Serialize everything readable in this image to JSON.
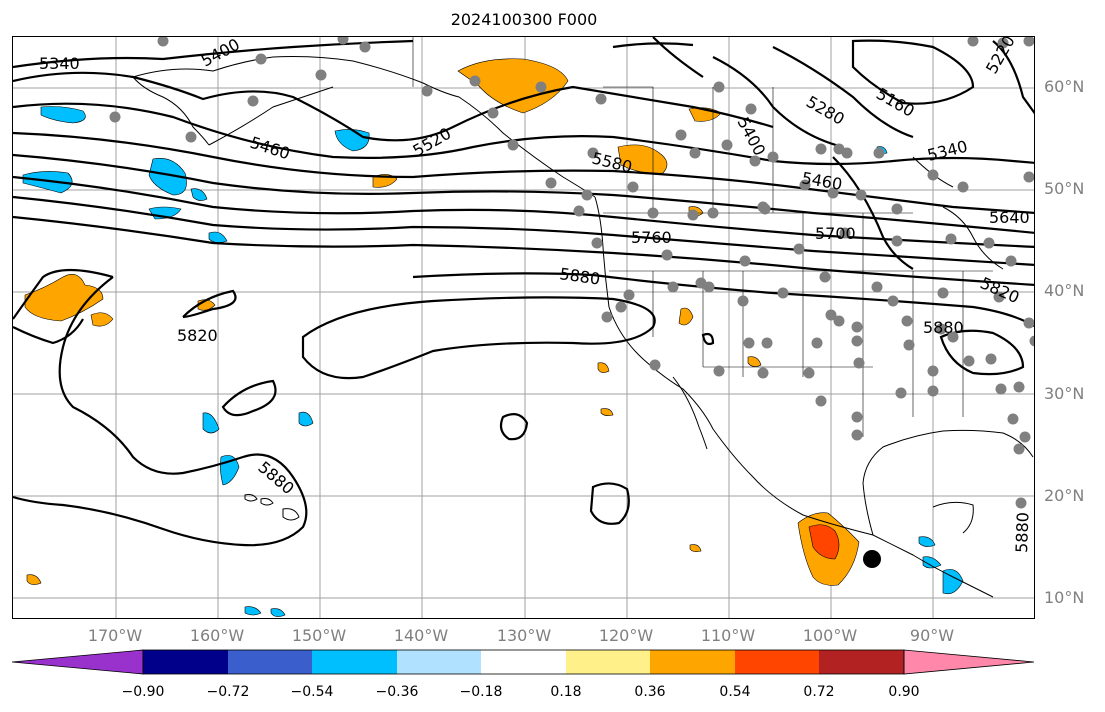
{
  "title": "2024100300 F000",
  "map": {
    "variable_shading": "anomaly",
    "latitude_labels": [
      "60°N",
      "50°N",
      "40°N",
      "30°N",
      "20°N",
      "10°N"
    ],
    "longitude_labels": [
      "170°W",
      "160°W",
      "150°W",
      "140°W",
      "130°W",
      "120°W",
      "110°W",
      "100°W",
      "90°W"
    ],
    "contour_labels": [
      "5340",
      "5400",
      "5460",
      "5520",
      "5580",
      "5400",
      "5280",
      "5160",
      "5220",
      "5340",
      "5460",
      "5640",
      "5760",
      "5700",
      "5880",
      "5820",
      "5820",
      "5880",
      "5880",
      "5880"
    ],
    "colors": {
      "contour": "#000000",
      "station_dots": "#808080",
      "grid": "#a0a0a0",
      "land_outline": "#000000"
    }
  },
  "colorbar": {
    "ticks": [
      "−0.90",
      "−0.72",
      "−0.54",
      "−0.36",
      "−0.18",
      "0.18",
      "0.36",
      "0.54",
      "0.72",
      "0.90"
    ],
    "colors": [
      "#9932cc",
      "#00008b",
      "#3a5fcd",
      "#00bfff",
      "#b0e2ff",
      "#ffffff",
      "#fff08a",
      "#ffa500",
      "#ff4500",
      "#b22222",
      "#ff88aa"
    ],
    "extend": "both"
  }
}
